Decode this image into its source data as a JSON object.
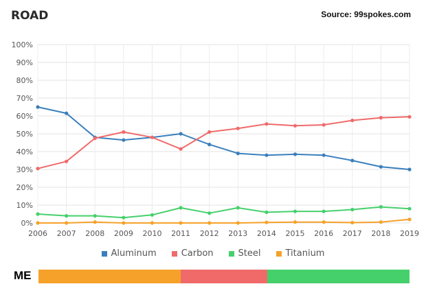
{
  "header": {
    "title": "ROAD",
    "source": "Source: 99spokes.com"
  },
  "colors": {
    "aluminum": "#3a7fbd",
    "carbon": "#f06a6a",
    "steel": "#45d06b",
    "titanium": "#f6a12a"
  },
  "chart_data": {
    "type": "line",
    "title": "ROAD",
    "x": [
      "2006",
      "2007",
      "2008",
      "2009",
      "2010",
      "2011",
      "2012",
      "2013",
      "2014",
      "2015",
      "2016",
      "2017",
      "2018",
      "2019"
    ],
    "ylim": [
      0,
      100
    ],
    "yticks": [
      "0%",
      "10%",
      "20%",
      "30%",
      "40%",
      "50%",
      "60%",
      "70%",
      "80%",
      "90%",
      "100%"
    ],
    "grid": true,
    "legend_position": "bottom",
    "series": [
      {
        "name": "Aluminum",
        "color": "#3a7fbd",
        "values": [
          65,
          61.5,
          48,
          46.5,
          48,
          50,
          44,
          39,
          38,
          38.5,
          38,
          35,
          31.5,
          30
        ]
      },
      {
        "name": "Carbon",
        "color": "#f06a6a",
        "values": [
          30.5,
          34.5,
          47.5,
          51,
          48,
          41.5,
          51,
          53,
          55.5,
          54.5,
          55,
          57.5,
          59,
          59.5
        ]
      },
      {
        "name": "Steel",
        "color": "#45d06b",
        "values": [
          5,
          4,
          4,
          3,
          4.5,
          8.5,
          5.5,
          8.5,
          6,
          6.5,
          6.5,
          7.5,
          9,
          8
        ]
      },
      {
        "name": "Titanium",
        "color": "#f6a12a",
        "values": [
          0,
          0,
          0.5,
          0,
          0,
          0,
          0,
          0,
          0.3,
          0.5,
          0.5,
          0.2,
          0.5,
          2
        ]
      }
    ]
  },
  "me": {
    "label": "ME",
    "segments": [
      {
        "name": "Titanium",
        "share": 0.383,
        "color": "#f6a12a"
      },
      {
        "name": "Carbon",
        "share": 0.233,
        "color": "#f06a6a"
      },
      {
        "name": "Steel",
        "share": 0.384,
        "color": "#45d06b"
      }
    ]
  }
}
